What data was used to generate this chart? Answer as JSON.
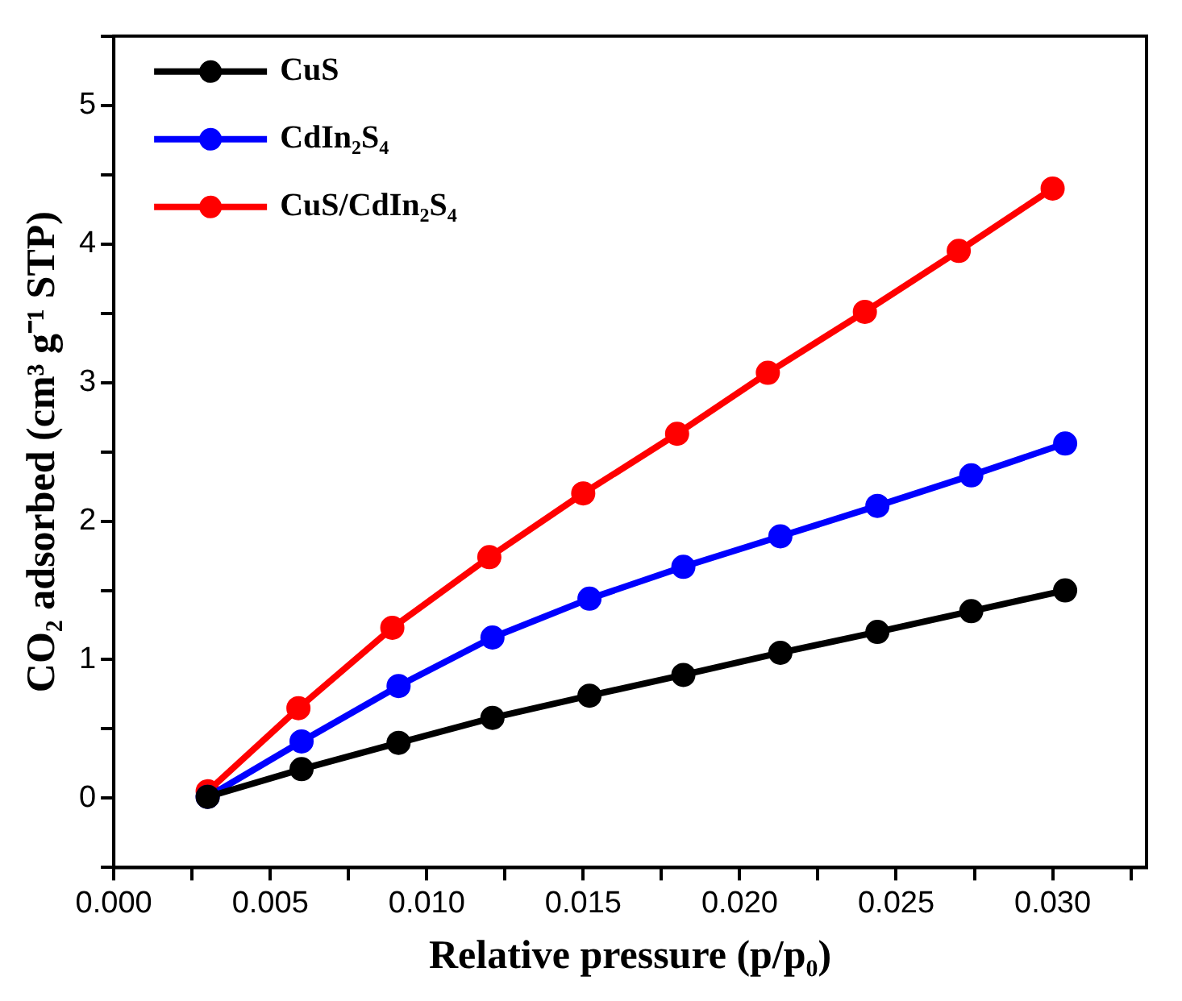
{
  "chart_data": {
    "type": "line",
    "xlabel": "Relative pressure (p/p₀)",
    "ylabel": "CO₂ adsorbed (cm³ g⁻¹ STP)",
    "xlim": [
      0,
      0.033
    ],
    "xticks": [
      {
        "value": 0,
        "label": "0.000"
      },
      {
        "value": 0.0025,
        "label": null
      },
      {
        "value": 0.005,
        "label": "0.005"
      },
      {
        "value": 0.0075,
        "label": null
      },
      {
        "value": 0.01,
        "label": "0.010"
      },
      {
        "value": 0.0125,
        "label": null
      },
      {
        "value": 0.015,
        "label": "0.015"
      },
      {
        "value": 0.0175,
        "label": null
      },
      {
        "value": 0.02,
        "label": "0.020"
      },
      {
        "value": 0.0225,
        "label": null
      },
      {
        "value": 0.025,
        "label": "0.025"
      },
      {
        "value": 0.0275,
        "label": null
      },
      {
        "value": 0.03,
        "label": "0.030"
      },
      {
        "value": 0.0325,
        "label": null
      }
    ],
    "ylim": [
      -0.5,
      5.5
    ],
    "yticks": [
      {
        "value": -0.5,
        "label": null
      },
      0,
      {
        "value": 0.5,
        "label": null
      },
      1,
      {
        "value": 1.5,
        "label": null
      },
      2,
      {
        "value": 2.5,
        "label": null
      },
      3,
      {
        "value": 3.5,
        "label": null
      },
      4,
      {
        "value": 4.5,
        "label": null
      },
      5,
      {
        "value": 5.5,
        "label": null
      }
    ],
    "grid": false,
    "legend": "top left",
    "marker": "circle",
    "line_style": "solid",
    "series": [
      {
        "name": "CuS",
        "color": "#000000",
        "x": [
          0.003,
          0.006,
          0.0091,
          0.0121,
          0.0152,
          0.0182,
          0.0213,
          0.0244,
          0.0274,
          0.0304
        ],
        "values": [
          0.01,
          0.21,
          0.4,
          0.58,
          0.74,
          0.89,
          1.05,
          1.2,
          1.35,
          1.5
        ]
      },
      {
        "name": "CdIn₂S₄",
        "color": "#0000ff",
        "x": [
          0.003,
          0.006,
          0.0091,
          0.0121,
          0.0152,
          0.0182,
          0.0213,
          0.0244,
          0.0274,
          0.0304
        ],
        "values": [
          0.01,
          0.41,
          0.81,
          1.16,
          1.44,
          1.67,
          1.89,
          2.11,
          2.33,
          2.56
        ]
      },
      {
        "name": "CuS/CdIn₂S₄",
        "color": "#ff0000",
        "x": [
          0.003,
          0.0059,
          0.0089,
          0.012,
          0.015,
          0.018,
          0.0209,
          0.024,
          0.027,
          0.03
        ],
        "values": [
          0.05,
          0.65,
          1.23,
          1.74,
          2.2,
          2.63,
          3.07,
          3.51,
          3.95,
          4.4
        ]
      }
    ]
  }
}
